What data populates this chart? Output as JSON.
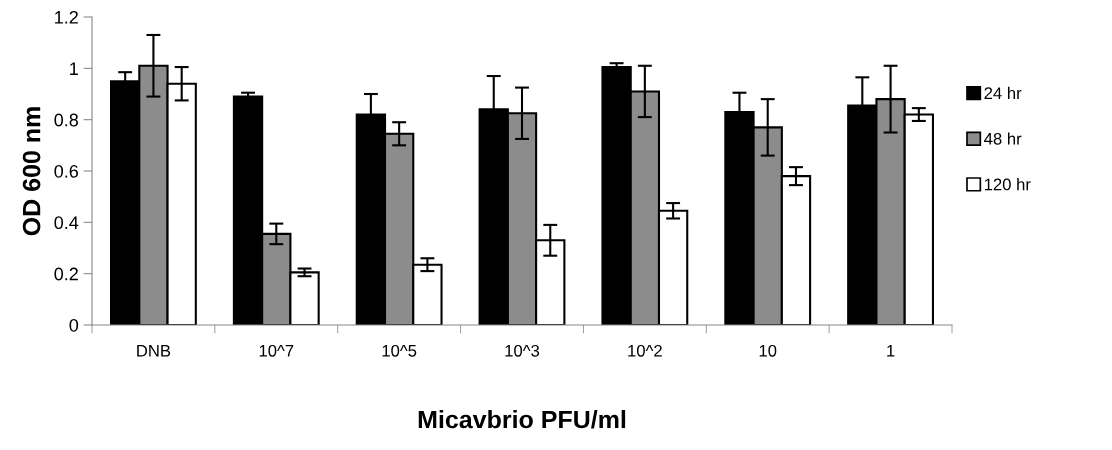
{
  "chart_data": {
    "type": "bar",
    "xlabel": "Micavbrio PFU/ml",
    "ylabel": "OD 600 nm",
    "categories": [
      "DNB",
      "10^7",
      "10^5",
      "10^3",
      "10^2",
      "10",
      "1"
    ],
    "series": [
      {
        "name": "24 hr",
        "color": "#000000",
        "values": [
          0.95,
          0.89,
          0.82,
          0.84,
          1.005,
          0.83,
          0.855
        ],
        "errors": [
          0.035,
          0.015,
          0.08,
          0.13,
          0.015,
          0.075,
          0.11
        ]
      },
      {
        "name": "48 hr",
        "color": "#8c8c8c",
        "values": [
          1.01,
          0.355,
          0.745,
          0.825,
          0.91,
          0.77,
          0.88
        ],
        "errors": [
          0.12,
          0.04,
          0.045,
          0.1,
          0.1,
          0.11,
          0.13
        ]
      },
      {
        "name": "120 hr",
        "color": "#ffffff",
        "values": [
          0.94,
          0.205,
          0.235,
          0.33,
          0.445,
          0.58,
          0.82
        ],
        "errors": [
          0.065,
          0.015,
          0.025,
          0.06,
          0.03,
          0.035,
          0.025
        ]
      }
    ],
    "ylim": [
      0,
      1.2
    ],
    "yticks": [
      0,
      0.2,
      0.4,
      0.6,
      0.8,
      1,
      1.2
    ],
    "grid": false,
    "legend": "right"
  }
}
